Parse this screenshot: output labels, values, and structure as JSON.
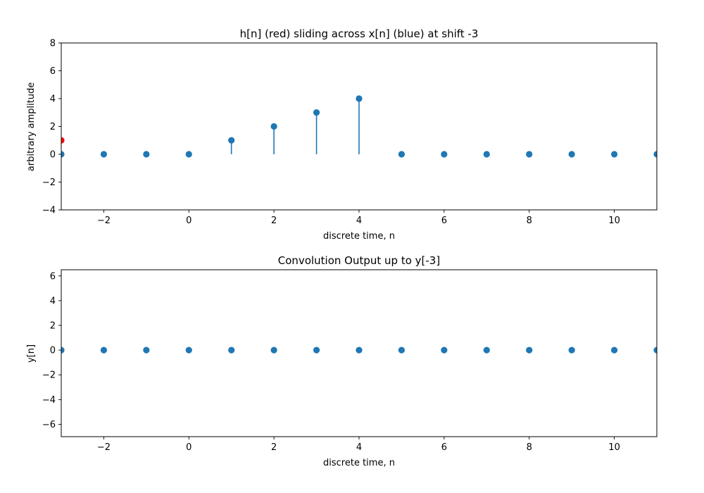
{
  "chart_data": [
    {
      "type": "stem",
      "title": "h[n] (red) sliding across x[n] (blue) at shift -3",
      "xlabel": "discrete time, n",
      "ylabel": "arbitrary amplitude",
      "xlim": [
        -3,
        11
      ],
      "ylim": [
        -4,
        8
      ],
      "xticks": [
        -2,
        0,
        2,
        4,
        6,
        8,
        10
      ],
      "yticks": [
        -4,
        -2,
        0,
        2,
        4,
        6,
        8
      ],
      "xtick_labels": [
        "−2",
        "0",
        "2",
        "4",
        "6",
        "8",
        "10"
      ],
      "ytick_labels": [
        "−4",
        "−2",
        "0",
        "2",
        "4",
        "6",
        "8"
      ],
      "series": [
        {
          "color": "#1f77b4",
          "x": [
            -3,
            -2,
            -1,
            0,
            1,
            2,
            3,
            4,
            5,
            6,
            7,
            8,
            9,
            10,
            11
          ],
          "values": [
            0,
            0,
            0,
            0,
            1,
            2,
            3,
            4,
            0,
            0,
            0,
            0,
            0,
            0,
            0
          ]
        },
        {
          "color": "#ff0000",
          "x": [
            -3
          ],
          "values": [
            1
          ]
        }
      ]
    },
    {
      "type": "stem",
      "title": "Convolution Output up to y[-3]",
      "xlabel": "discrete time, n",
      "ylabel": "y[n]",
      "xlim": [
        -3,
        11
      ],
      "ylim": [
        -7,
        6.5
      ],
      "xticks": [
        -2,
        0,
        2,
        4,
        6,
        8,
        10
      ],
      "yticks": [
        -6,
        -4,
        -2,
        0,
        2,
        4,
        6
      ],
      "xtick_labels": [
        "−2",
        "0",
        "2",
        "4",
        "6",
        "8",
        "10"
      ],
      "ytick_labels": [
        "−6",
        "−4",
        "−2",
        "0",
        "2",
        "4",
        "6"
      ],
      "series": [
        {
          "color": "#1f77b4",
          "x": [
            -3,
            -2,
            -1,
            0,
            1,
            2,
            3,
            4,
            5,
            6,
            7,
            8,
            9,
            10,
            11
          ],
          "values": [
            0,
            0,
            0,
            0,
            0,
            0,
            0,
            0,
            0,
            0,
            0,
            0,
            0,
            0,
            0
          ]
        }
      ]
    }
  ]
}
